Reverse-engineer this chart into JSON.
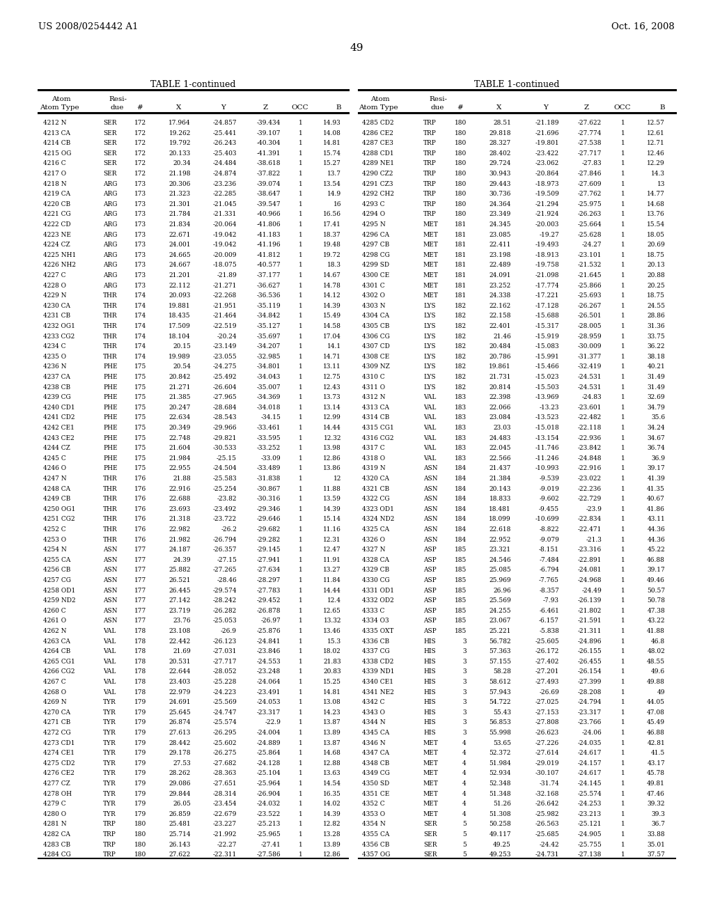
{
  "page_header_left": "US 2008/0254442 A1",
  "page_header_right": "Oct. 16, 2008",
  "page_number": "49",
  "table_title": "TABLE 1-continued",
  "background_color": "#ffffff",
  "text_color": "#000000",
  "font_size": 6.5,
  "header_font_size": 7.5,
  "title_font_size": 9.0,
  "left_data": [
    [
      "4212 N",
      "SER",
      "172",
      "17.964",
      "-24.857",
      "-39.434",
      "1",
      "14.93"
    ],
    [
      "4213 CA",
      "SER",
      "172",
      "19.262",
      "-25.441",
      "-39.107",
      "1",
      "14.08"
    ],
    [
      "4214 CB",
      "SER",
      "172",
      "19.792",
      "-26.243",
      "-40.304",
      "1",
      "14.81"
    ],
    [
      "4215 OG",
      "SER",
      "172",
      "20.133",
      "-25.403",
      "-41.391",
      "1",
      "15.74"
    ],
    [
      "4216 C",
      "SER",
      "172",
      "20.34",
      "-24.484",
      "-38.618",
      "1",
      "15.27"
    ],
    [
      "4217 O",
      "SER",
      "172",
      "21.198",
      "-24.874",
      "-37.822",
      "1",
      "13.7"
    ],
    [
      "4218 N",
      "ARG",
      "173",
      "20.306",
      "-23.236",
      "-39.074",
      "1",
      "13.54"
    ],
    [
      "4219 CA",
      "ARG",
      "173",
      "21.323",
      "-22.285",
      "-38.647",
      "1",
      "14.9"
    ],
    [
      "4220 CB",
      "ARG",
      "173",
      "21.301",
      "-21.045",
      "-39.547",
      "1",
      "16"
    ],
    [
      "4221 CG",
      "ARG",
      "173",
      "21.784",
      "-21.331",
      "-40.966",
      "1",
      "16.56"
    ],
    [
      "4222 CD",
      "ARG",
      "173",
      "21.834",
      "-20.064",
      "-41.806",
      "1",
      "17.41"
    ],
    [
      "4223 NE",
      "ARG",
      "173",
      "22.671",
      "-19.042",
      "-41.183",
      "1",
      "18.37"
    ],
    [
      "4224 CZ",
      "ARG",
      "173",
      "24.001",
      "-19.042",
      "-41.196",
      "1",
      "19.48"
    ],
    [
      "4225 NH1",
      "ARG",
      "173",
      "24.665",
      "-20.009",
      "-41.812",
      "1",
      "19.72"
    ],
    [
      "4226 NH2",
      "ARG",
      "173",
      "24.667",
      "-18.075",
      "-40.577",
      "1",
      "18.3"
    ],
    [
      "4227 C",
      "ARG",
      "173",
      "21.201",
      "-21.89",
      "-37.177",
      "1",
      "14.67"
    ],
    [
      "4228 O",
      "ARG",
      "173",
      "22.112",
      "-21.271",
      "-36.627",
      "1",
      "14.78"
    ],
    [
      "4229 N",
      "THR",
      "174",
      "20.093",
      "-22.268",
      "-36.536",
      "1",
      "14.12"
    ],
    [
      "4230 CA",
      "THR",
      "174",
      "19.881",
      "-21.951",
      "-35.119",
      "1",
      "14.39"
    ],
    [
      "4231 CB",
      "THR",
      "174",
      "18.435",
      "-21.464",
      "-34.842",
      "1",
      "15.49"
    ],
    [
      "4232 OG1",
      "THR",
      "174",
      "17.509",
      "-22.519",
      "-35.127",
      "1",
      "14.58"
    ],
    [
      "4233 CG2",
      "THR",
      "174",
      "18.104",
      "-20.24",
      "-35.697",
      "1",
      "17.04"
    ],
    [
      "4234 C",
      "THR",
      "174",
      "20.15",
      "-23.149",
      "-34.207",
      "1",
      "14.1"
    ],
    [
      "4235 O",
      "THR",
      "174",
      "19.989",
      "-23.055",
      "-32.985",
      "1",
      "14.71"
    ],
    [
      "4236 N",
      "PHE",
      "175",
      "20.54",
      "-24.275",
      "-34.801",
      "1",
      "13.11"
    ],
    [
      "4237 CA",
      "PHE",
      "175",
      "20.842",
      "-25.492",
      "-34.043",
      "1",
      "12.75"
    ],
    [
      "4238 CB",
      "PHE",
      "175",
      "21.271",
      "-26.604",
      "-35.007",
      "1",
      "12.43"
    ],
    [
      "4239 CG",
      "PHE",
      "175",
      "21.385",
      "-27.965",
      "-34.369",
      "1",
      "13.73"
    ],
    [
      "4240 CD1",
      "PHE",
      "175",
      "20.247",
      "-28.684",
      "-34.018",
      "1",
      "13.14"
    ],
    [
      "4241 CD2",
      "PHE",
      "175",
      "22.634",
      "-28.543",
      "-34.15",
      "1",
      "12.99"
    ],
    [
      "4242 CE1",
      "PHE",
      "175",
      "20.349",
      "-29.966",
      "-33.461",
      "1",
      "14.44"
    ],
    [
      "4243 CE2",
      "PHE",
      "175",
      "22.748",
      "-29.821",
      "-33.595",
      "1",
      "12.32"
    ],
    [
      "4244 CZ",
      "PHE",
      "175",
      "21.604",
      "-30.533",
      "-33.252",
      "1",
      "13.98"
    ],
    [
      "4245 C",
      "PHE",
      "175",
      "21.984",
      "-25.15",
      "-33.09",
      "1",
      "12.86"
    ],
    [
      "4246 O",
      "PHE",
      "175",
      "22.955",
      "-24.504",
      "-33.489",
      "1",
      "13.86"
    ],
    [
      "4247 N",
      "THR",
      "176",
      "21.88",
      "-25.583",
      "-31.838",
      "1",
      "12"
    ],
    [
      "4248 CA",
      "THR",
      "176",
      "22.916",
      "-25.254",
      "-30.867",
      "1",
      "11.88"
    ],
    [
      "4249 CB",
      "THR",
      "176",
      "22.688",
      "-23.82",
      "-30.316",
      "1",
      "13.59"
    ],
    [
      "4250 OG1",
      "THR",
      "176",
      "23.693",
      "-23.492",
      "-29.346",
      "1",
      "14.39"
    ],
    [
      "4251 CG2",
      "THR",
      "176",
      "21.318",
      "-23.722",
      "-29.646",
      "1",
      "15.14"
    ],
    [
      "4252 C",
      "THR",
      "176",
      "22.982",
      "-26.2",
      "-29.682",
      "1",
      "11.16"
    ],
    [
      "4253 O",
      "THR",
      "176",
      "21.982",
      "-26.794",
      "-29.282",
      "1",
      "12.31"
    ],
    [
      "4254 N",
      "ASN",
      "177",
      "24.187",
      "-26.357",
      "-29.145",
      "1",
      "12.47"
    ],
    [
      "4255 CA",
      "ASN",
      "177",
      "24.39",
      "-27.15",
      "-27.941",
      "1",
      "11.91"
    ],
    [
      "4256 CB",
      "ASN",
      "177",
      "25.882",
      "-27.265",
      "-27.634",
      "1",
      "13.27"
    ],
    [
      "4257 CG",
      "ASN",
      "177",
      "26.521",
      "-28.46",
      "-28.297",
      "1",
      "11.84"
    ],
    [
      "4258 OD1",
      "ASN",
      "177",
      "26.445",
      "-29.574",
      "-27.783",
      "1",
      "14.44"
    ],
    [
      "4259 ND2",
      "ASN",
      "177",
      "27.142",
      "-28.242",
      "-29.452",
      "1",
      "12.4"
    ],
    [
      "4260 C",
      "ASN",
      "177",
      "23.719",
      "-26.282",
      "-26.878",
      "1",
      "12.65"
    ],
    [
      "4261 O",
      "ASN",
      "177",
      "23.76",
      "-25.053",
      "-26.97",
      "1",
      "13.32"
    ],
    [
      "4262 N",
      "VAL",
      "178",
      "23.108",
      "-26.9",
      "-25.876",
      "1",
      "13.46"
    ],
    [
      "4263 CA",
      "VAL",
      "178",
      "22.442",
      "-26.123",
      "-24.841",
      "1",
      "15.3"
    ],
    [
      "4264 CB",
      "VAL",
      "178",
      "21.69",
      "-27.031",
      "-23.846",
      "1",
      "18.02"
    ],
    [
      "4265 CG1",
      "VAL",
      "178",
      "20.531",
      "-27.717",
      "-24.553",
      "1",
      "21.83"
    ],
    [
      "4266 CG2",
      "VAL",
      "178",
      "22.644",
      "-28.052",
      "-23.248",
      "1",
      "20.83"
    ],
    [
      "4267 C",
      "VAL",
      "178",
      "23.403",
      "-25.228",
      "-24.064",
      "1",
      "15.25"
    ],
    [
      "4268 O",
      "VAL",
      "178",
      "22.979",
      "-24.223",
      "-23.491",
      "1",
      "14.81"
    ],
    [
      "4269 N",
      "TYR",
      "179",
      "24.691",
      "-25.569",
      "-24.053",
      "1",
      "13.08"
    ],
    [
      "4270 CA",
      "TYR",
      "179",
      "25.645",
      "-24.747",
      "-23.317",
      "1",
      "14.23"
    ],
    [
      "4271 CB",
      "TYR",
      "179",
      "26.874",
      "-25.574",
      "-22.9",
      "1",
      "13.87"
    ],
    [
      "4272 CG",
      "TYR",
      "179",
      "27.613",
      "-26.295",
      "-24.004",
      "1",
      "13.89"
    ],
    [
      "4273 CD1",
      "TYR",
      "179",
      "28.442",
      "-25.602",
      "-24.889",
      "1",
      "13.87"
    ],
    [
      "4274 CE1",
      "TYR",
      "179",
      "29.178",
      "-26.275",
      "-25.864",
      "1",
      "14.68"
    ],
    [
      "4275 CD2",
      "TYR",
      "179",
      "27.53",
      "-27.682",
      "-24.128",
      "1",
      "12.88"
    ],
    [
      "4276 CE2",
      "TYR",
      "179",
      "28.262",
      "-28.363",
      "-25.104",
      "1",
      "13.63"
    ],
    [
      "4277 CZ",
      "TYR",
      "179",
      "29.086",
      "-27.651",
      "-25.964",
      "1",
      "14.54"
    ],
    [
      "4278 OH",
      "TYR",
      "179",
      "29.844",
      "-28.314",
      "-26.904",
      "1",
      "16.35"
    ],
    [
      "4279 C",
      "TYR",
      "179",
      "26.05",
      "-23.454",
      "-24.032",
      "1",
      "14.02"
    ],
    [
      "4280 O",
      "TYR",
      "179",
      "26.859",
      "-22.679",
      "-23.522",
      "1",
      "14.39"
    ],
    [
      "4281 N",
      "TRP",
      "180",
      "25.481",
      "-23.227",
      "-25.213",
      "1",
      "12.82"
    ],
    [
      "4282 CA",
      "TRP",
      "180",
      "25.714",
      "-21.992",
      "-25.965",
      "1",
      "13.28"
    ],
    [
      "4283 CB",
      "TRP",
      "180",
      "26.143",
      "-22.27",
      "-27.41",
      "1",
      "13.89"
    ],
    [
      "4284 CG",
      "TRP",
      "180",
      "27.622",
      "-22.311",
      "-27.586",
      "1",
      "12.86"
    ]
  ],
  "right_data": [
    [
      "4285 CD2",
      "TRP",
      "180",
      "28.51",
      "-21.189",
      "-27.622",
      "1",
      "12.57"
    ],
    [
      "4286 CE2",
      "TRP",
      "180",
      "29.818",
      "-21.696",
      "-27.774",
      "1",
      "12.61"
    ],
    [
      "4287 CE3",
      "TRP",
      "180",
      "28.327",
      "-19.801",
      "-27.538",
      "1",
      "12.71"
    ],
    [
      "4288 CD1",
      "TRP",
      "180",
      "28.402",
      "-23.422",
      "-27.717",
      "1",
      "12.46"
    ],
    [
      "4289 NE1",
      "TRP",
      "180",
      "29.724",
      "-23.062",
      "-27.83",
      "1",
      "12.29"
    ],
    [
      "4290 CZ2",
      "TRP",
      "180",
      "30.943",
      "-20.864",
      "-27.846",
      "1",
      "14.3"
    ],
    [
      "4291 CZ3",
      "TRP",
      "180",
      "29.443",
      "-18.973",
      "-27.609",
      "1",
      "13"
    ],
    [
      "4292 CH2",
      "TRP",
      "180",
      "30.736",
      "-19.509",
      "-27.762",
      "1",
      "14.77"
    ],
    [
      "4293 C",
      "TRP",
      "180",
      "24.364",
      "-21.294",
      "-25.975",
      "1",
      "14.68"
    ],
    [
      "4294 O",
      "TRP",
      "180",
      "23.349",
      "-21.924",
      "-26.263",
      "1",
      "13.76"
    ],
    [
      "4295 N",
      "MET",
      "181",
      "24.345",
      "-20.003",
      "-25.664",
      "1",
      "15.54"
    ],
    [
      "4296 CA",
      "MET",
      "181",
      "23.085",
      "-19.27",
      "-25.628",
      "1",
      "18.05"
    ],
    [
      "4297 CB",
      "MET",
      "181",
      "22.411",
      "-19.493",
      "-24.27",
      "1",
      "20.69"
    ],
    [
      "4298 CG",
      "MET",
      "181",
      "23.198",
      "-18.913",
      "-23.101",
      "1",
      "18.75"
    ],
    [
      "4299 SD",
      "MET",
      "181",
      "22.489",
      "-19.758",
      "-21.532",
      "1",
      "20.13"
    ],
    [
      "4300 CE",
      "MET",
      "181",
      "24.091",
      "-21.098",
      "-21.645",
      "1",
      "20.88"
    ],
    [
      "4301 C",
      "MET",
      "181",
      "23.252",
      "-17.774",
      "-25.866",
      "1",
      "20.25"
    ],
    [
      "4302 O",
      "MET",
      "181",
      "24.338",
      "-17.221",
      "-25.693",
      "1",
      "18.75"
    ],
    [
      "4303 N",
      "LYS",
      "182",
      "22.162",
      "-17.128",
      "-26.267",
      "1",
      "24.55"
    ],
    [
      "4304 CA",
      "LYS",
      "182",
      "22.158",
      "-15.688",
      "-26.501",
      "1",
      "28.86"
    ],
    [
      "4305 CB",
      "LYS",
      "182",
      "22.401",
      "-15.317",
      "-28.005",
      "1",
      "31.36"
    ],
    [
      "4306 CG",
      "LYS",
      "182",
      "21.46",
      "-15.919",
      "-28.959",
      "1",
      "33.75"
    ],
    [
      "4307 CD",
      "LYS",
      "182",
      "20.484",
      "-15.083",
      "-30.009",
      "1",
      "36.22"
    ],
    [
      "4308 CE",
      "LYS",
      "182",
      "20.786",
      "-15.991",
      "-31.377",
      "1",
      "38.18"
    ],
    [
      "4309 NZ",
      "LYS",
      "182",
      "19.861",
      "-15.466",
      "-32.419",
      "1",
      "40.21"
    ],
    [
      "4310 C",
      "LYS",
      "182",
      "21.731",
      "-15.023",
      "-24.531",
      "1",
      "31.49"
    ],
    [
      "4311 O",
      "LYS",
      "182",
      "20.814",
      "-15.503",
      "-24.531",
      "1",
      "31.49"
    ],
    [
      "4312 N",
      "VAL",
      "183",
      "22.398",
      "-13.969",
      "-24.83",
      "1",
      "32.69"
    ],
    [
      "4313 CA",
      "VAL",
      "183",
      "22.066",
      "-13.23",
      "-23.601",
      "1",
      "34.79"
    ],
    [
      "4314 CB",
      "VAL",
      "183",
      "23.084",
      "-13.523",
      "-22.482",
      "1",
      "35.6"
    ],
    [
      "4315 CG1",
      "VAL",
      "183",
      "23.03",
      "-15.018",
      "-22.118",
      "1",
      "34.24"
    ],
    [
      "4316 CG2",
      "VAL",
      "183",
      "24.483",
      "-13.154",
      "-22.936",
      "1",
      "34.67"
    ],
    [
      "4317 C",
      "VAL",
      "183",
      "22.045",
      "-11.746",
      "-23.842",
      "1",
      "36.74"
    ],
    [
      "4318 O",
      "VAL",
      "183",
      "22.566",
      "-11.246",
      "-24.848",
      "1",
      "36.9"
    ],
    [
      "4319 N",
      "ASN",
      "184",
      "21.437",
      "-10.993",
      "-22.916",
      "1",
      "39.17"
    ],
    [
      "4320 CA",
      "ASN",
      "184",
      "21.384",
      "-9.539",
      "-23.022",
      "1",
      "41.39"
    ],
    [
      "4321 CB",
      "ASN",
      "184",
      "20.143",
      "-9.019",
      "-22.236",
      "1",
      "41.35"
    ],
    [
      "4322 CG",
      "ASN",
      "184",
      "18.833",
      "-9.602",
      "-22.729",
      "1",
      "40.67"
    ],
    [
      "4323 OD1",
      "ASN",
      "184",
      "18.481",
      "-9.455",
      "-23.9",
      "1",
      "41.86"
    ],
    [
      "4324 ND2",
      "ASN",
      "184",
      "18.099",
      "-10.699",
      "-22.834",
      "1",
      "43.11"
    ],
    [
      "4325 CA",
      "ASN",
      "184",
      "22.618",
      "-8.822",
      "-22.471",
      "1",
      "44.36"
    ],
    [
      "4326 O",
      "ASN",
      "184",
      "22.952",
      "-9.079",
      "-21.3",
      "1",
      "44.36"
    ],
    [
      "4327 N",
      "ASP",
      "185",
      "23.321",
      "-8.151",
      "-23.316",
      "1",
      "45.22"
    ],
    [
      "4328 CA",
      "ASP",
      "185",
      "24.546",
      "-7.484",
      "-22.891",
      "1",
      "46.88"
    ],
    [
      "4329 CB",
      "ASP",
      "185",
      "25.085",
      "-6.794",
      "-24.081",
      "1",
      "39.17"
    ],
    [
      "4330 CG",
      "ASP",
      "185",
      "25.969",
      "-7.765",
      "-24.968",
      "1",
      "49.46"
    ],
    [
      "4331 OD1",
      "ASP",
      "185",
      "26.96",
      "-8.357",
      "-24.49",
      "1",
      "50.57"
    ],
    [
      "4332 OD2",
      "ASP",
      "185",
      "25.569",
      "-7.93",
      "-26.139",
      "1",
      "50.78"
    ],
    [
      "4333 C",
      "ASP",
      "185",
      "24.255",
      "-6.461",
      "-21.802",
      "1",
      "47.38"
    ],
    [
      "4334 O3",
      "ASP",
      "185",
      "23.067",
      "-6.157",
      "-21.591",
      "1",
      "43.22"
    ],
    [
      "4335 OXT",
      "ASP",
      "185",
      "25.221",
      "-5.838",
      "-21.311",
      "1",
      "41.88"
    ],
    [
      "4336 CB",
      "HIS",
      "3",
      "56.782",
      "-25.605",
      "-24.896",
      "1",
      "46.8"
    ],
    [
      "4337 CG",
      "HIS",
      "3",
      "57.363",
      "-26.172",
      "-26.155",
      "1",
      "48.02"
    ],
    [
      "4338 CD2",
      "HIS",
      "3",
      "57.155",
      "-27.402",
      "-26.455",
      "1",
      "48.55"
    ],
    [
      "4339 ND1",
      "HIS",
      "3",
      "58.28",
      "-27.201",
      "-26.154",
      "1",
      "49.6"
    ],
    [
      "4340 CE1",
      "HIS",
      "3",
      "58.612",
      "-27.493",
      "-27.399",
      "1",
      "49.88"
    ],
    [
      "4341 NE2",
      "HIS",
      "3",
      "57.943",
      "-26.69",
      "-28.208",
      "1",
      "49"
    ],
    [
      "4342 C",
      "HIS",
      "3",
      "54.722",
      "-27.025",
      "-24.794",
      "1",
      "44.05"
    ],
    [
      "4343 O",
      "HIS",
      "3",
      "55.43",
      "-27.153",
      "-23.317",
      "1",
      "47.08"
    ],
    [
      "4344 N",
      "HIS",
      "3",
      "56.853",
      "-27.808",
      "-23.766",
      "1",
      "45.49"
    ],
    [
      "4345 CA",
      "HIS",
      "3",
      "55.998",
      "-26.623",
      "-24.06",
      "1",
      "46.88"
    ],
    [
      "4346 N",
      "MET",
      "4",
      "53.65",
      "-27.226",
      "-24.035",
      "1",
      "42.81"
    ],
    [
      "4347 CA",
      "MET",
      "4",
      "52.372",
      "-27.614",
      "-24.617",
      "1",
      "41.5"
    ],
    [
      "4348 CB",
      "MET",
      "4",
      "51.984",
      "-29.019",
      "-24.157",
      "1",
      "43.17"
    ],
    [
      "4349 CG",
      "MET",
      "4",
      "52.934",
      "-30.107",
      "-24.617",
      "1",
      "45.78"
    ],
    [
      "4350 SD",
      "MET",
      "4",
      "52.348",
      "-31.74",
      "-24.145",
      "1",
      "49.81"
    ],
    [
      "4351 CE",
      "MET",
      "4",
      "51.348",
      "-32.168",
      "-25.574",
      "1",
      "47.46"
    ],
    [
      "4352 C",
      "MET",
      "4",
      "51.26",
      "-26.642",
      "-24.253",
      "1",
      "39.32"
    ],
    [
      "4353 O",
      "MET",
      "4",
      "51.308",
      "-25.982",
      "-23.213",
      "1",
      "39.3"
    ],
    [
      "4354 N",
      "SER",
      "5",
      "50.258",
      "-26.563",
      "-25.121",
      "1",
      "36.7"
    ],
    [
      "4355 CA",
      "SER",
      "5",
      "49.117",
      "-25.685",
      "-24.905",
      "1",
      "33.88"
    ],
    [
      "4356 CB",
      "SER",
      "5",
      "49.25",
      "-24.42",
      "-25.755",
      "1",
      "35.01"
    ],
    [
      "4357 OG",
      "SER",
      "5",
      "49.253",
      "-24.731",
      "-27.138",
      "1",
      "37.57"
    ]
  ]
}
